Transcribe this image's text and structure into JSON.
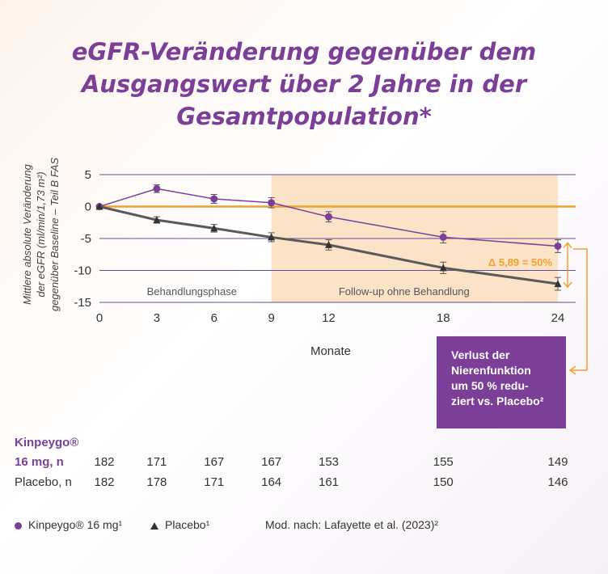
{
  "title_lines": [
    "eGFR-Veränderung gegenüber dem",
    "Ausgangswert über 2 Jahre in der",
    "Gesamtpopulation*"
  ],
  "colors": {
    "kinpeygo": "#7b3f98",
    "placebo": "#5a5a5a",
    "accent": "#f0a030",
    "shade": "#fbe3c8"
  },
  "chart_data": {
    "type": "line",
    "ylabel_lines": [
      "Mittlere absolute Veränderung",
      "der eGFR (ml/min/1,73 m²)",
      "gegenüber Baseline – Teil B FAS"
    ],
    "xlabel": "Monate",
    "x_ticks": [
      0,
      3,
      6,
      9,
      12,
      18,
      24
    ],
    "y_ticks": [
      5,
      0,
      -5,
      -10,
      -15
    ],
    "ylim": [
      -15,
      5
    ],
    "xlim": [
      0,
      24
    ],
    "series": [
      {
        "name": "Kinpeygo® 16 mg",
        "marker": "circle",
        "x": [
          0,
          3,
          6,
          9,
          12,
          18,
          24
        ],
        "y": [
          0,
          2.8,
          1.2,
          0.6,
          -1.6,
          -4.8,
          -6.2
        ],
        "err": [
          0,
          0.6,
          0.7,
          0.8,
          0.8,
          0.9,
          1.0
        ]
      },
      {
        "name": "Placebo",
        "marker": "triangle",
        "x": [
          0,
          3,
          6,
          9,
          12,
          18,
          24
        ],
        "y": [
          0,
          -2.1,
          -3.4,
          -4.8,
          -6.0,
          -9.6,
          -12.1
        ],
        "err": [
          0,
          0.5,
          0.6,
          0.7,
          0.8,
          0.9,
          1.0
        ]
      }
    ],
    "regions": [
      {
        "label": "Behandlungsphase",
        "from": 0,
        "to": 9
      },
      {
        "label": "Follow-up ohne Behandlung",
        "from": 9,
        "to": 24
      }
    ],
    "annotation": "Δ 5,89 = 50%"
  },
  "callout_lines": [
    "Verlust der",
    "Nierenfunktion",
    "um 50 % redu-",
    "ziert vs. Placebo²"
  ],
  "n_table": {
    "kinpeygo_label_1": "Kinpeygo®",
    "kinpeygo_label_2": "16 mg, n",
    "kinpeygo_values": [
      "182",
      "171",
      "167",
      "167",
      "153",
      "155",
      "149"
    ],
    "placebo_label": "Placebo, n",
    "placebo_values": [
      "182",
      "178",
      "171",
      "164",
      "161",
      "150",
      "146"
    ]
  },
  "legend": {
    "kinpeygo": "Kinpeygo® 16 mg¹",
    "placebo": "Placebo¹",
    "source": "Mod. nach: Lafayette et al. (2023)²"
  }
}
